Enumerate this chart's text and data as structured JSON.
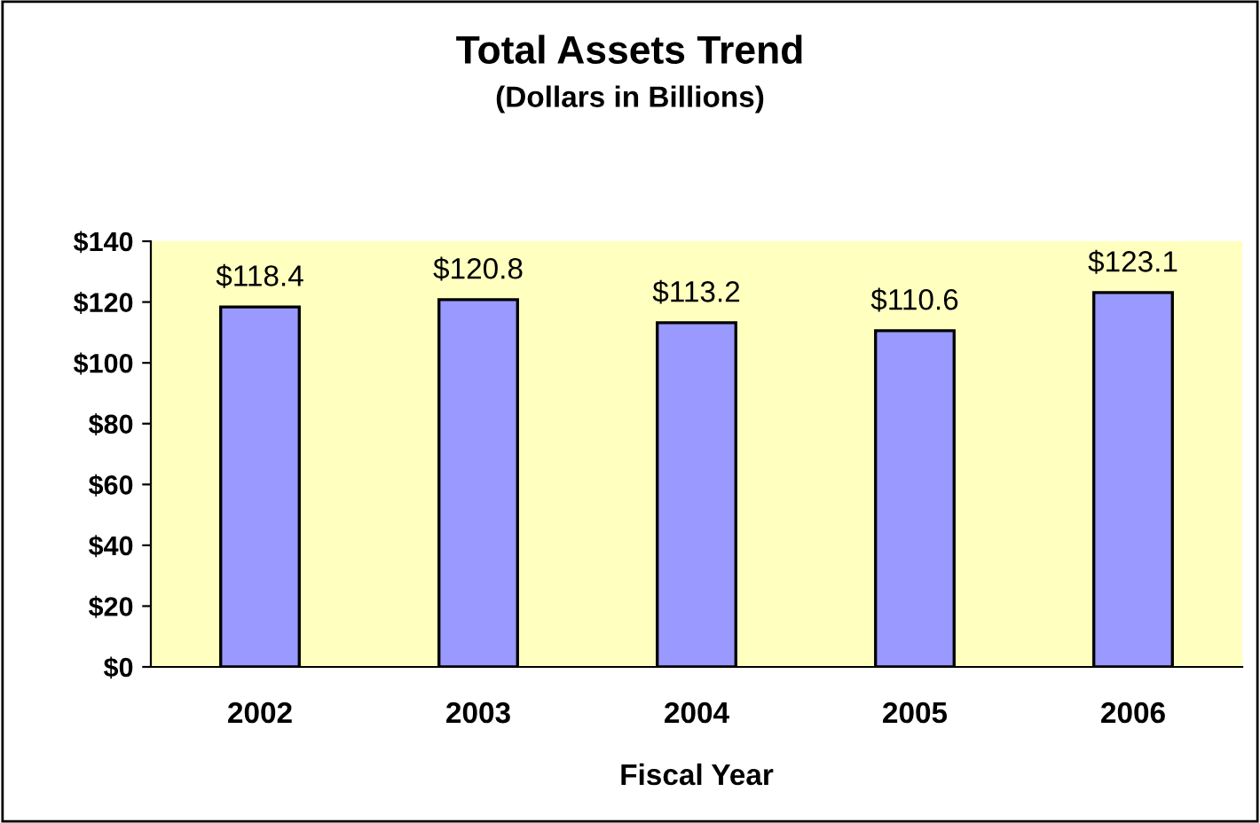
{
  "chart_data": {
    "type": "bar",
    "title": "Total Assets Trend",
    "subtitle": "(Dollars in Billions)",
    "xlabel": "Fiscal Year",
    "categories": [
      "2002",
      "2003",
      "2004",
      "2005",
      "2006"
    ],
    "values": [
      118.4,
      120.8,
      113.2,
      110.6,
      123.1
    ],
    "value_labels": [
      "$118.4",
      "$120.8",
      "$113.2",
      "$110.6",
      "$123.1"
    ],
    "color": "#9999ff",
    "ylim": [
      0,
      140
    ],
    "yticks": [
      {
        "value": 0,
        "label": "$0"
      },
      {
        "value": 20,
        "label": "$20"
      },
      {
        "value": 40,
        "label": "$40"
      },
      {
        "value": 60,
        "label": "$60"
      },
      {
        "value": 80,
        "label": "$80"
      },
      {
        "value": 100,
        "label": "$100"
      },
      {
        "value": 120,
        "label": "$120"
      },
      {
        "value": 140,
        "label": "$140"
      }
    ],
    "grid": false,
    "legend": false
  }
}
